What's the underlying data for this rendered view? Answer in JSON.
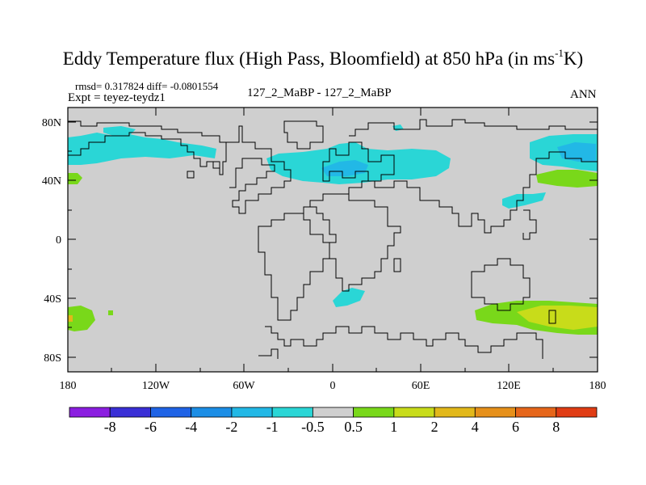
{
  "title": {
    "main": "Eddy Temperature flux (High Pass, Bloomfield) at 850 hPa (in ms",
    "sup": "-1",
    "tail": "K)"
  },
  "stats": {
    "rmsd_diff": "rmsd= 0.317824 diff= -0.0801554",
    "expt": "Expt = teyez-teydz1",
    "case": "127_2_MaBP - 127_2_MaBP",
    "period": "ANN"
  },
  "axes": {
    "lat_labels": [
      "80N",
      "40N",
      "0",
      "40S",
      "80S"
    ],
    "lon_labels": [
      "180",
      "120W",
      "60W",
      "0",
      "60E",
      "120E",
      "180"
    ]
  },
  "colorbar": {
    "colors": [
      "#8b1ee0",
      "#3a2fd6",
      "#1f63e6",
      "#1c8ee6",
      "#22b8e6",
      "#2ad6d6",
      "#cfcfcf",
      "#79d81a",
      "#c8dc1a",
      "#e2b81a",
      "#e6901a",
      "#e6661a",
      "#e03c14"
    ],
    "labels": [
      "-8",
      "-6",
      "-4",
      "-2",
      "-1",
      "-0.5",
      "0.5",
      "1",
      "2",
      "4",
      "6",
      "8"
    ]
  },
  "colors": {
    "neutral": "#cfcfcf",
    "cyan": "#2ad6d6",
    "light_blue": "#22b8e6",
    "green": "#79d81a",
    "yellow_green": "#c8dc1a",
    "orange": "#e2b81a"
  }
}
